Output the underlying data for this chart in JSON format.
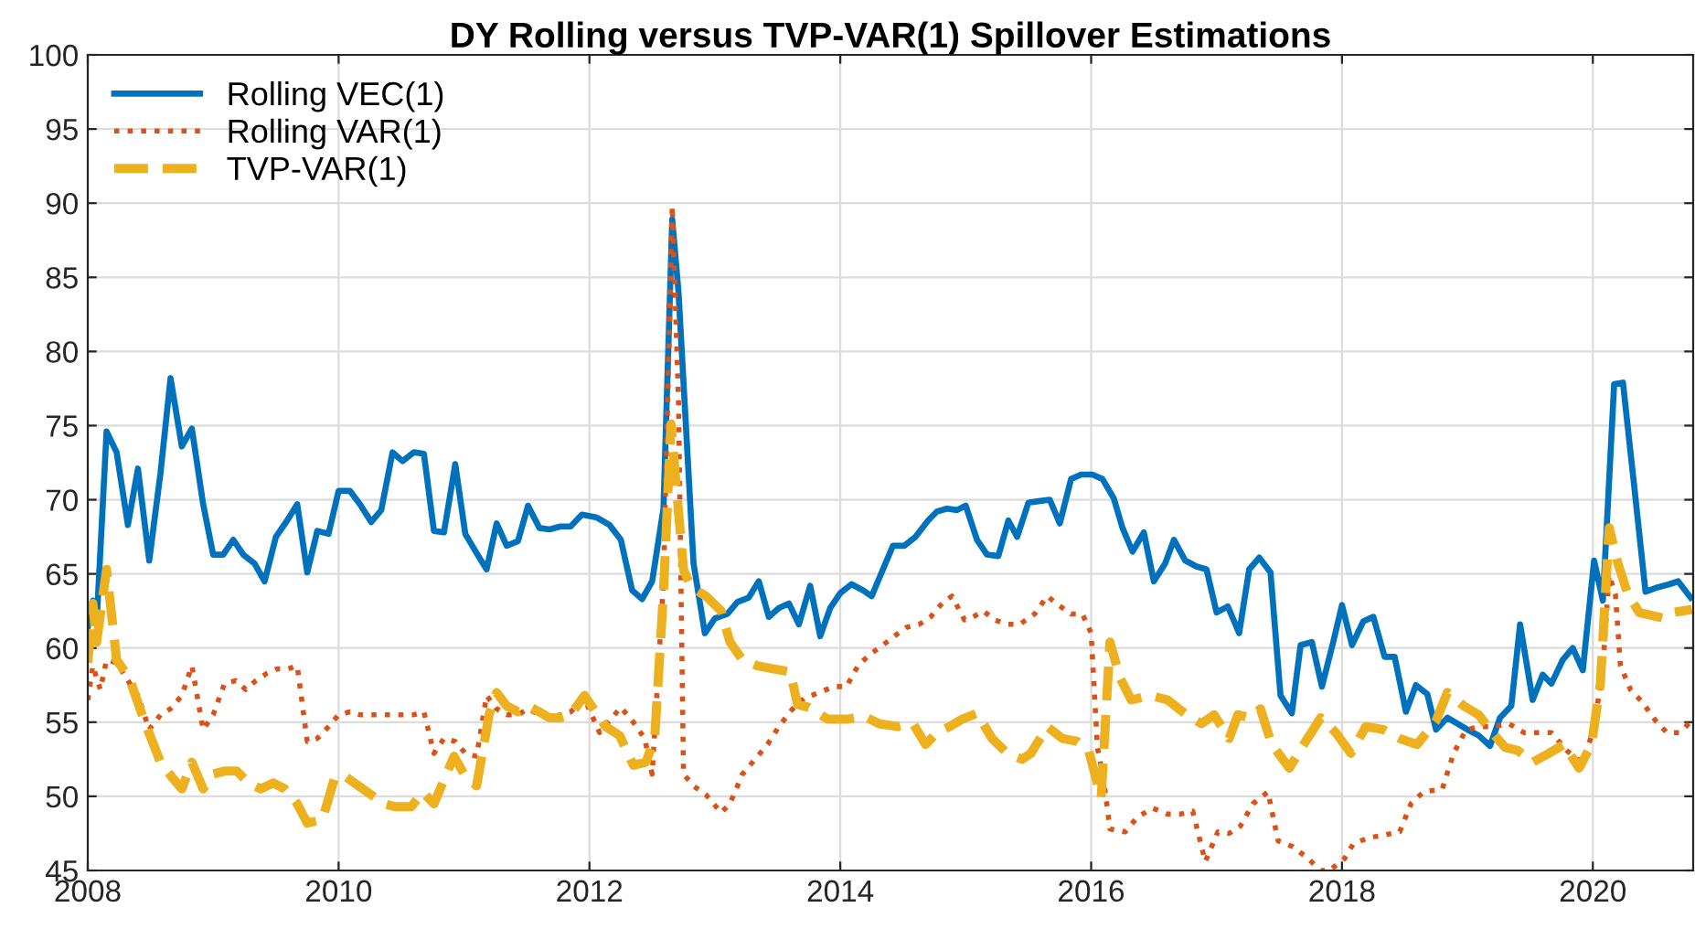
{
  "chart_data": {
    "type": "line",
    "title": "DY Rolling versus TVP-VAR(1) Spillover Estimations",
    "xlim": [
      2008,
      2020.8
    ],
    "xticks": [
      2008,
      2010,
      2012,
      2014,
      2016,
      2018,
      2020
    ],
    "ylim": [
      45,
      100
    ],
    "yticks": [
      45,
      50,
      55,
      60,
      65,
      70,
      75,
      80,
      85,
      90,
      95,
      100
    ],
    "grid": true,
    "legend": "top left",
    "series": [
      {
        "name": "Rolling VEC(1)",
        "color": "#0072bd",
        "line_style": "solid",
        "x": [
          2008.0,
          2008.04,
          2008.07,
          2008.15,
          2008.23,
          2008.32,
          2008.4,
          2008.49,
          2008.58,
          2008.66,
          2008.75,
          2008.83,
          2008.92,
          2009.0,
          2009.08,
          2009.16,
          2009.24,
          2009.33,
          2009.41,
          2009.5,
          2009.59,
          2009.67,
          2009.75,
          2009.83,
          2009.92,
          2010.0,
          2010.09,
          2010.17,
          2010.26,
          2010.34,
          2010.43,
          2010.51,
          2010.6,
          2010.68,
          2010.76,
          2010.84,
          2010.93,
          2011.01,
          2011.1,
          2011.18,
          2011.26,
          2011.34,
          2011.43,
          2011.51,
          2011.6,
          2011.68,
          2011.77,
          2011.85,
          2011.94,
          2012.06,
          2012.16,
          2012.25,
          2012.34,
          2012.42,
          2012.5,
          2012.59,
          2012.66,
          2012.71,
          2012.83,
          2012.92,
          2013.0,
          2013.1,
          2013.18,
          2013.27,
          2013.35,
          2013.43,
          2013.51,
          2013.59,
          2013.67,
          2013.76,
          2013.84,
          2013.92,
          2014.0,
          2014.09,
          2014.18,
          2014.25,
          2014.34,
          2014.42,
          2014.51,
          2014.6,
          2014.7,
          2014.77,
          2014.85,
          2014.93,
          2015.0,
          2015.09,
          2015.17,
          2015.26,
          2015.34,
          2015.41,
          2015.5,
          2015.58,
          2015.67,
          2015.75,
          2015.84,
          2015.92,
          2016.01,
          2016.09,
          2016.18,
          2016.25,
          2016.33,
          2016.42,
          2016.5,
          2016.59,
          2016.66,
          2016.75,
          2016.84,
          2016.92,
          2017.0,
          2017.09,
          2017.18,
          2017.26,
          2017.34,
          2017.43,
          2017.51,
          2017.6,
          2017.67,
          2017.76,
          2017.84,
          2017.93,
          2018.0,
          2018.08,
          2018.17,
          2018.25,
          2018.34,
          2018.42,
          2018.51,
          2018.59,
          2018.68,
          2018.75,
          2018.84,
          2018.92,
          2019.0,
          2019.09,
          2019.18,
          2019.26,
          2019.35,
          2019.42,
          2019.52,
          2019.6,
          2019.67,
          2019.76,
          2019.84,
          2019.92,
          2020.01,
          2020.08,
          2020.17,
          2020.24,
          2020.33,
          2020.42,
          2020.52,
          2020.61,
          2020.68,
          2020.78
        ],
        "values": [
          61.4,
          63.2,
          61.6,
          74.6,
          73.2,
          68.3,
          72.1,
          65.9,
          71.8,
          78.2,
          73.6,
          74.8,
          69.7,
          66.3,
          66.3,
          67.3,
          66.3,
          65.7,
          64.5,
          67.5,
          68.6,
          69.7,
          65.1,
          67.9,
          67.7,
          70.6,
          70.6,
          69.7,
          68.5,
          69.3,
          73.2,
          72.6,
          73.2,
          73.1,
          67.9,
          67.8,
          72.4,
          67.7,
          66.4,
          65.3,
          68.4,
          66.9,
          67.2,
          69.6,
          68.1,
          68.0,
          68.2,
          68.2,
          69.0,
          68.8,
          68.3,
          67.3,
          63.9,
          63.3,
          64.5,
          69.4,
          88.9,
          84.0,
          65.7,
          61.0,
          62.0,
          62.3,
          63.1,
          63.4,
          64.5,
          62.1,
          62.7,
          63.0,
          61.6,
          64.2,
          60.8,
          62.7,
          63.7,
          64.3,
          63.9,
          63.5,
          65.3,
          66.9,
          66.9,
          67.5,
          68.6,
          69.2,
          69.4,
          69.3,
          69.6,
          67.3,
          66.3,
          66.2,
          68.6,
          67.5,
          69.8,
          69.9,
          70.0,
          68.4,
          71.4,
          71.7,
          71.7,
          71.4,
          70.1,
          68.1,
          66.5,
          67.8,
          64.5,
          65.7,
          67.3,
          65.9,
          65.5,
          65.3,
          62.4,
          62.8,
          61.0,
          65.3,
          66.1,
          65.1,
          56.8,
          55.6,
          60.2,
          60.4,
          57.4,
          60.4,
          62.9,
          60.2,
          61.8,
          62.1,
          59.4,
          59.4,
          55.7,
          57.5,
          56.9,
          54.5,
          55.3,
          54.9,
          54.5,
          54.1,
          53.4,
          55.3,
          56.1,
          61.6,
          56.5,
          58.2,
          57.6,
          59.2,
          60.0,
          58.5,
          65.9,
          63.2,
          77.8,
          77.9,
          70.9,
          63.8,
          64.1,
          64.3,
          64.5,
          63.4
        ]
      },
      {
        "name": "Rolling VAR(1)",
        "color": "#d95319",
        "line_style": "dotted",
        "x": [
          2008.0,
          2008.04,
          2008.1,
          2008.15,
          2008.23,
          2008.32,
          2008.4,
          2008.49,
          2008.58,
          2008.66,
          2008.75,
          2008.83,
          2008.92,
          2009.0,
          2009.09,
          2009.18,
          2009.26,
          2009.34,
          2009.43,
          2009.51,
          2009.6,
          2009.67,
          2009.75,
          2009.83,
          2009.92,
          2010.0,
          2010.09,
          2010.17,
          2010.26,
          2010.34,
          2010.43,
          2010.51,
          2010.6,
          2010.68,
          2010.76,
          2010.84,
          2010.93,
          2011.01,
          2011.1,
          2011.18,
          2011.26,
          2011.34,
          2011.43,
          2011.51,
          2011.6,
          2011.68,
          2011.77,
          2011.85,
          2011.96,
          2012.08,
          2012.25,
          2012.35,
          2012.44,
          2012.5,
          2012.59,
          2012.66,
          2012.71,
          2012.75,
          2012.83,
          2012.93,
          2013.05,
          2013.12,
          2013.22,
          2013.32,
          2013.42,
          2013.51,
          2013.61,
          2013.71,
          2013.83,
          2013.95,
          2014.05,
          2014.14,
          2014.24,
          2014.34,
          2014.43,
          2014.53,
          2014.63,
          2014.72,
          2014.82,
          2014.89,
          2014.99,
          2015.06,
          2015.14,
          2015.23,
          2015.33,
          2015.43,
          2015.55,
          2015.65,
          2015.74,
          2015.84,
          2015.93,
          2016.0,
          2016.05,
          2016.1,
          2016.15,
          2016.27,
          2016.37,
          2016.49,
          2016.61,
          2016.71,
          2016.81,
          2016.91,
          2017.01,
          2017.1,
          2017.19,
          2017.29,
          2017.41,
          2017.49,
          2017.61,
          2017.73,
          2017.83,
          2017.9,
          2018.02,
          2018.09,
          2018.21,
          2018.34,
          2018.46,
          2018.55,
          2018.65,
          2018.8,
          2018.89,
          2018.99,
          2019.11,
          2019.21,
          2019.33,
          2019.45,
          2019.57,
          2019.67,
          2019.79,
          2019.91,
          2020.01,
          2020.08,
          2020.13,
          2020.18,
          2020.22,
          2020.3,
          2020.4,
          2020.5,
          2020.59,
          2020.69,
          2020.79
        ],
        "values": [
          56.5,
          58.8,
          57.2,
          59.2,
          59.0,
          57.8,
          56.8,
          54.5,
          55.5,
          55.9,
          56.8,
          58.8,
          54.5,
          55.5,
          57.6,
          57.8,
          57.2,
          57.8,
          58.3,
          58.6,
          58.6,
          58.8,
          53.7,
          53.9,
          54.7,
          55.5,
          55.7,
          55.5,
          55.5,
          55.5,
          55.5,
          55.5,
          55.5,
          55.7,
          52.9,
          53.9,
          53.7,
          52.9,
          52.7,
          56.8,
          55.9,
          55.5,
          55.5,
          55.9,
          55.5,
          55.3,
          55.5,
          55.7,
          56.6,
          54.3,
          56.0,
          55.0,
          53.9,
          51.5,
          64.5,
          89.8,
          76.7,
          51.5,
          50.7,
          50.1,
          48.9,
          49.5,
          51.5,
          52.5,
          53.5,
          54.7,
          55.8,
          56.6,
          57.0,
          57.4,
          57.4,
          58.8,
          59.6,
          60.2,
          60.8,
          61.4,
          61.6,
          62.1,
          63.1,
          63.5,
          61.9,
          62.1,
          62.5,
          61.9,
          61.6,
          61.6,
          62.3,
          63.5,
          62.9,
          62.3,
          62.3,
          61.0,
          53.3,
          51.1,
          47.8,
          47.6,
          48.6,
          49.2,
          48.8,
          48.8,
          49.0,
          45.6,
          47.6,
          47.5,
          48.0,
          49.5,
          50.3,
          47.0,
          46.6,
          45.8,
          45.0,
          45.0,
          45.8,
          46.8,
          47.2,
          47.4,
          47.6,
          49.5,
          50.3,
          50.5,
          52.9,
          54.5,
          54.7,
          54.7,
          54.9,
          54.3,
          54.3,
          54.3,
          53.1,
          52.3,
          54.5,
          58.8,
          64.9,
          63.6,
          58.8,
          57.2,
          56.3,
          55.1,
          54.3,
          54.3,
          55.1
        ]
      },
      {
        "name": "TVP-VAR(1)",
        "color": "#edb120",
        "line_style": "dashed",
        "x": [
          2008.0,
          2008.04,
          2008.07,
          2008.15,
          2008.23,
          2008.33,
          2008.45,
          2008.58,
          2008.67,
          2008.75,
          2008.83,
          2008.92,
          2009.0,
          2009.09,
          2009.19,
          2009.28,
          2009.38,
          2009.48,
          2009.57,
          2009.67,
          2009.75,
          2009.87,
          2009.97,
          2010.06,
          2010.16,
          2010.26,
          2010.36,
          2010.45,
          2010.58,
          2010.67,
          2010.76,
          2010.84,
          2010.92,
          2011.0,
          2011.1,
          2011.2,
          2011.26,
          2011.34,
          2011.43,
          2011.51,
          2011.6,
          2011.68,
          2011.77,
          2011.85,
          2011.96,
          2012.13,
          2012.24,
          2012.35,
          2012.45,
          2012.52,
          2012.59,
          2012.65,
          2012.7,
          2012.75,
          2012.81,
          2012.93,
          2013.05,
          2013.12,
          2013.22,
          2013.34,
          2013.46,
          2013.6,
          2013.66,
          2013.75,
          2013.9,
          2014.05,
          2014.19,
          2014.31,
          2014.46,
          2014.58,
          2014.68,
          2014.77,
          2014.87,
          2014.97,
          2015.09,
          2015.21,
          2015.33,
          2015.45,
          2015.52,
          2015.65,
          2015.77,
          2015.89,
          2015.98,
          2016.08,
          2016.15,
          2016.23,
          2016.32,
          2016.47,
          2016.61,
          2016.76,
          2016.88,
          2016.98,
          2017.1,
          2017.17,
          2017.27,
          2017.35,
          2017.44,
          2017.58,
          2017.68,
          2017.83,
          2017.95,
          2018.07,
          2018.19,
          2018.33,
          2018.46,
          2018.6,
          2018.75,
          2018.84,
          2018.97,
          2019.09,
          2019.18,
          2019.3,
          2019.4,
          2019.52,
          2019.65,
          2019.77,
          2019.89,
          2019.99,
          2020.06,
          2020.13,
          2020.2,
          2020.28,
          2020.37,
          2020.47,
          2020.57,
          2020.64,
          2020.79
        ],
        "values": [
          59.0,
          63.0,
          60.4,
          65.3,
          59.2,
          58.0,
          55.1,
          52.3,
          51.3,
          50.5,
          52.3,
          50.5,
          51.5,
          51.7,
          51.7,
          50.9,
          50.5,
          50.9,
          50.5,
          49.5,
          48.2,
          48.4,
          51.3,
          51.3,
          50.7,
          50.1,
          49.5,
          49.3,
          49.3,
          50.3,
          49.5,
          51.1,
          52.7,
          51.5,
          50.7,
          55.5,
          57.0,
          56.1,
          55.7,
          56.1,
          55.7,
          55.3,
          55.3,
          55.5,
          56.8,
          54.7,
          54.1,
          52.1,
          52.3,
          53.9,
          63.7,
          75.1,
          70.2,
          65.3,
          64.1,
          63.5,
          62.5,
          60.4,
          59.2,
          58.8,
          58.6,
          58.4,
          56.2,
          56.0,
          55.2,
          55.2,
          55.4,
          54.9,
          54.7,
          54.9,
          53.5,
          54.3,
          54.7,
          55.2,
          55.6,
          53.9,
          52.9,
          52.5,
          52.9,
          54.7,
          53.9,
          53.7,
          53.1,
          49.9,
          60.4,
          58.0,
          56.5,
          56.8,
          56.5,
          55.5,
          54.9,
          55.5,
          53.9,
          55.5,
          55.3,
          55.9,
          53.5,
          51.9,
          53.3,
          55.3,
          54.3,
          52.9,
          54.7,
          54.5,
          53.9,
          53.5,
          55.1,
          57.0,
          56.1,
          55.5,
          54.5,
          53.3,
          53.1,
          52.3,
          52.9,
          53.5,
          51.9,
          53.5,
          57.6,
          68.1,
          65.7,
          63.6,
          62.4,
          62.2,
          62.0,
          62.4,
          62.6
        ]
      }
    ]
  }
}
